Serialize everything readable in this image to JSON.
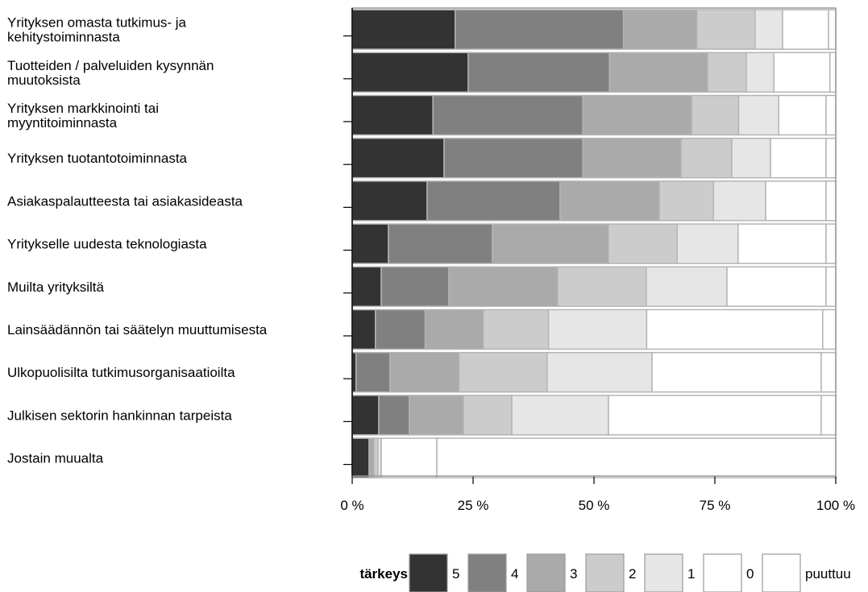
{
  "chart_data": {
    "type": "bar",
    "orientation": "horizontal",
    "stacked": true,
    "categories": [
      [
        "Yrityksen omasta tutkimus- ja",
        "kehitystoiminnasta"
      ],
      [
        "Tuotteiden / palveluiden kysynnän",
        "muutoksista"
      ],
      [
        "Yrityksen markkinointi tai",
        "myyntitoiminnasta"
      ],
      [
        "Yrityksen tuotantotoiminnasta"
      ],
      [
        "Asiakaspalautteesta tai asiakasideasta"
      ],
      [
        "Yritykselle uudesta teknologiasta"
      ],
      [
        "Muilta yrityksiltä"
      ],
      [
        "Lainsäädännön tai säätelyn muuttumisesta"
      ],
      [
        "Ulkopuolisilta tutkimusorganisaatioilta"
      ],
      [
        "Julkisen sektorin hankinnan tarpeista"
      ],
      [
        "Jostain muualta"
      ]
    ],
    "series": [
      {
        "name": "5",
        "color": "#333333",
        "values": [
          21.3,
          24.0,
          16.7,
          19.0,
          15.5,
          7.5,
          6.0,
          4.8,
          0.8,
          5.5,
          3.5
        ]
      },
      {
        "name": "4",
        "color": "#808080",
        "values": [
          34.8,
          29.2,
          31.0,
          28.7,
          27.5,
          21.5,
          14.0,
          10.3,
          7.0,
          6.3,
          0.0
        ]
      },
      {
        "name": "3",
        "color": "#aaaaaa",
        "values": [
          15.2,
          20.3,
          22.5,
          20.3,
          20.5,
          24.0,
          22.5,
          12.0,
          14.3,
          11.2,
          1.0
        ]
      },
      {
        "name": "2",
        "color": "#cccccc",
        "values": [
          12.0,
          8.0,
          9.7,
          10.5,
          11.2,
          14.2,
          18.3,
          13.5,
          18.2,
          10.0,
          0.8
        ]
      },
      {
        "name": "1",
        "color": "#e6e6e6",
        "values": [
          5.7,
          5.7,
          8.3,
          8.0,
          10.8,
          12.6,
          16.7,
          20.3,
          21.7,
          20.0,
          0.7
        ]
      },
      {
        "name": "0",
        "color": "#ffffff",
        "values": [
          9.5,
          11.6,
          9.8,
          11.5,
          12.5,
          18.2,
          20.5,
          36.4,
          35.0,
          44.0,
          11.5
        ]
      },
      {
        "name": "puuttuu",
        "color": "#ffffff",
        "values": [
          1.5,
          1.2,
          2.0,
          2.0,
          2.0,
          2.0,
          2.0,
          2.7,
          3.0,
          3.0,
          82.5
        ]
      }
    ],
    "xlim": [
      0,
      100
    ],
    "xticks": [
      "0 %",
      "25 %",
      "50 %",
      "75 %",
      "100 %"
    ],
    "legend": {
      "title": "tärkeys",
      "position": "bottom"
    }
  }
}
